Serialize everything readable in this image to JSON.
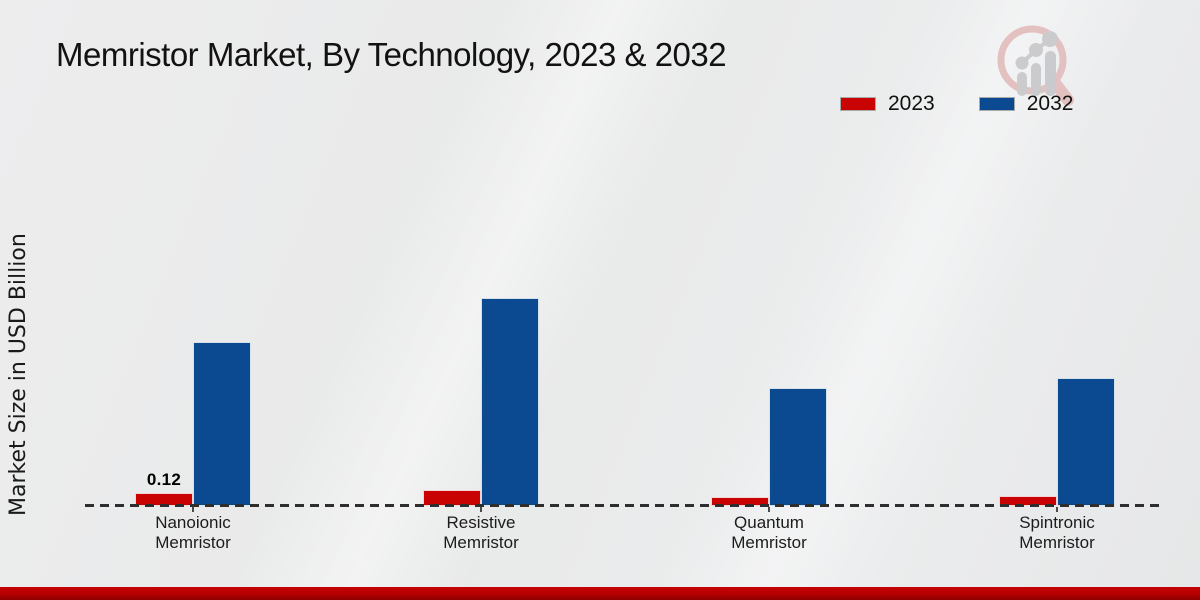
{
  "title": "Memristor Market, By Technology, 2023 & 2032",
  "y_axis_label": "Market Size in USD Billion",
  "legend": [
    {
      "label": "2023",
      "color": "#c80301"
    },
    {
      "label": "2032",
      "color": "#0b4a90"
    }
  ],
  "colors": {
    "series_2023": "#c80301",
    "series_2032": "#0b4a90",
    "baseline": "#2e2e2e",
    "background": "#e9eaea",
    "bottom_strip": "#b30100",
    "title_text": "#121212"
  },
  "watermark_icon": "magnifier-bar-chart-logo",
  "chart_data": {
    "type": "bar",
    "title": "Memristor Market, By Technology, 2023 & 2032",
    "ylabel": "Market Size in USD Billion",
    "xlabel": "",
    "categories": [
      "Nanoionic Memristor",
      "Resistive Memristor",
      "Quantum Memristor",
      "Spintronic Memristor"
    ],
    "series": [
      {
        "name": "2023",
        "color": "#c80301",
        "values": [
          0.12,
          0.15,
          0.08,
          0.09
        ]
      },
      {
        "name": "2032",
        "color": "#0b4a90",
        "values": [
          1.51,
          1.92,
          1.09,
          1.18
        ]
      }
    ],
    "data_labels": [
      {
        "series": "2023",
        "category": "Nanoionic Memristor",
        "text": "0.12"
      }
    ],
    "ylim": [
      0,
      2.1
    ],
    "grid": false,
    "baseline_style": "dashed",
    "legend_position": "top-right"
  }
}
